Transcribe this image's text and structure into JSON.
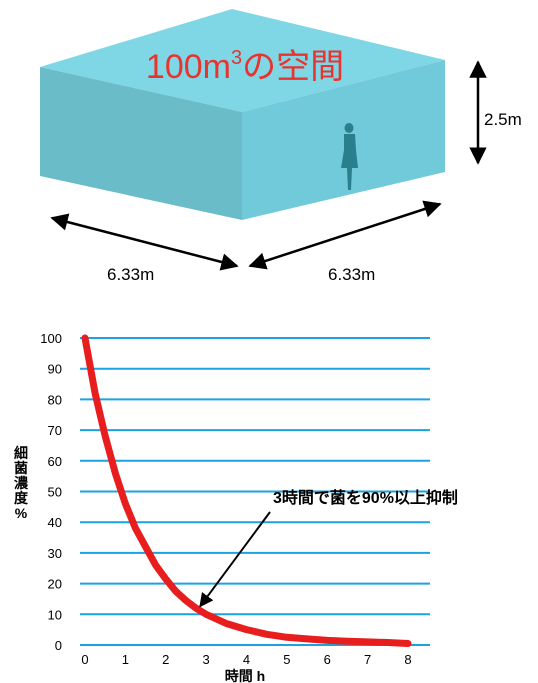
{
  "room": {
    "title_main": "100m",
    "title_sup": "3",
    "title_rest": "の空間",
    "height_label": "2.5m",
    "width_left_label": "6.33m",
    "width_right_label": "6.33m",
    "top_color": "#7fd7e6",
    "left_color": "#6bbcc9",
    "right_color": "#70cad9",
    "title_color": "#e8332e",
    "person_icon": "standing-person-silhouette"
  },
  "chart_data": {
    "type": "line",
    "title": "",
    "xlabel": "時間 h",
    "ylabel": "細菌濃度%",
    "ylabel_chars": [
      "細",
      "菌",
      "濃",
      "度",
      "%"
    ],
    "xlim": [
      0,
      8
    ],
    "ylim": [
      0,
      100
    ],
    "x_ticks": [
      "0",
      "1",
      "2",
      "3",
      "4",
      "5",
      "6",
      "7",
      "8"
    ],
    "y_ticks": [
      "0",
      "10",
      "20",
      "30",
      "40",
      "50",
      "60",
      "70",
      "80",
      "90",
      "100"
    ],
    "grid": true,
    "gridline_color": "#1aa3e0",
    "series": [
      {
        "color": "#e81e1e",
        "x": [
          0,
          0.25,
          0.5,
          0.75,
          1,
          1.25,
          1.5,
          1.75,
          2,
          2.25,
          2.5,
          2.75,
          3,
          3.5,
          4,
          4.5,
          5,
          5.5,
          6,
          6.5,
          7,
          7.5,
          8
        ],
        "y": [
          100,
          82,
          68,
          56,
          46,
          38,
          32,
          26,
          21.5,
          17.5,
          14.5,
          12,
          10,
          7,
          5,
          3.5,
          2.5,
          2,
          1.5,
          1.2,
          1,
          0.8,
          0.5
        ]
      }
    ],
    "annotation": {
      "text": "3時間で菌を90%以上抑制",
      "x": 3,
      "y": 10
    }
  }
}
